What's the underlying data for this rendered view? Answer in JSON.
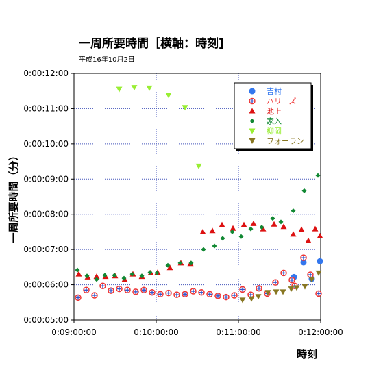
{
  "chart_data": {
    "type": "scatter",
    "title": "一周所要時間［横軸：時刻]",
    "subtitle": "平成16年10月2日",
    "xlabel": "時刻",
    "ylabel": "一周所要時間（分）",
    "xlim": [
      "0:09:00:00",
      "0:12:00:00"
    ],
    "ylim": [
      "0:00:05:00",
      "0:00:12:00"
    ],
    "x_ticks": [
      "0:09:00:00",
      "0:10:00:00",
      "0:11:00:00",
      "0:12:00:00"
    ],
    "y_ticks": [
      "0:00:05:00",
      "0:00:06:00",
      "0:00:07:00",
      "0:00:08:00",
      "0:00:09:00",
      "0:00:10:00",
      "0:00:11:00",
      "0:00:12:00"
    ],
    "grid": true,
    "legend_position": "top-right",
    "series": [
      {
        "name": "吉村",
        "marker": "circle",
        "color": "#3377ee",
        "points": [
          [
            "0:11:40:30",
            "0:00:06:13"
          ],
          [
            "0:11:47:30",
            "0:00:06:38"
          ],
          [
            "0:11:53:30",
            "0:00:06:10"
          ],
          [
            "0:11:59:30",
            "0:00:06:40"
          ]
        ]
      },
      {
        "name": "ハリーズ",
        "marker": "cross-circle",
        "color": "#ee3333",
        "points": [
          [
            "0:09:03:00",
            "0:00:05:38"
          ],
          [
            "0:09:09:00",
            "0:00:05:51"
          ],
          [
            "0:09:15:00",
            "0:00:05:42"
          ],
          [
            "0:09:21:00",
            "0:00:05:58"
          ],
          [
            "0:09:27:00",
            "0:00:05:50"
          ],
          [
            "0:09:33:00",
            "0:00:05:53"
          ],
          [
            "0:09:39:00",
            "0:00:05:51"
          ],
          [
            "0:09:45:00",
            "0:00:05:48"
          ],
          [
            "0:09:51:00",
            "0:00:05:51"
          ],
          [
            "0:09:57:00",
            "0:00:05:47"
          ],
          [
            "0:10:03:00",
            "0:00:05:44"
          ],
          [
            "0:10:09:00",
            "0:00:05:46"
          ],
          [
            "0:10:15:00",
            "0:00:05:43"
          ],
          [
            "0:10:21:00",
            "0:00:05:44"
          ],
          [
            "0:10:27:00",
            "0:00:05:49"
          ],
          [
            "0:10:33:00",
            "0:00:05:47"
          ],
          [
            "0:10:39:00",
            "0:00:05:44"
          ],
          [
            "0:10:45:00",
            "0:00:05:41"
          ],
          [
            "0:10:51:00",
            "0:00:05:39"
          ],
          [
            "0:10:57:00",
            "0:00:05:42"
          ],
          [
            "0:11:03:00",
            "0:00:05:52"
          ],
          [
            "0:11:09:00",
            "0:00:05:43"
          ],
          [
            "0:11:15:00",
            "0:00:05:54"
          ],
          [
            "0:11:21:00",
            "0:00:05:45"
          ],
          [
            "0:11:27:00",
            "0:00:06:04"
          ],
          [
            "0:11:33:00",
            "0:00:06:20"
          ],
          [
            "0:11:39:00",
            "0:00:06:08"
          ],
          [
            "0:11:41:00",
            "0:00:05:58"
          ],
          [
            "0:11:47:30",
            "0:00:06:46"
          ],
          [
            "0:11:52:30",
            "0:00:06:17"
          ],
          [
            "0:11:58:30",
            "0:00:05:45"
          ]
        ]
      },
      {
        "name": "池上",
        "marker": "triangle-up",
        "color": "#dd1111",
        "points": [
          [
            "0:09:03:30",
            "0:00:06:18"
          ],
          [
            "0:09:10:00",
            "0:00:06:13"
          ],
          [
            "0:09:16:30",
            "0:00:06:14"
          ],
          [
            "0:09:23:00",
            "0:00:06:14"
          ],
          [
            "0:09:30:00",
            "0:00:06:15"
          ],
          [
            "0:09:37:00",
            "0:00:06:09"
          ],
          [
            "0:09:43:00",
            "0:00:06:18"
          ],
          [
            "0:09:49:30",
            "0:00:06:14"
          ],
          [
            "0:09:56:00",
            "0:00:06:20"
          ],
          [
            "0:10:01:00",
            "0:00:06:21"
          ],
          [
            "0:10:10:00",
            "0:00:06:29"
          ],
          [
            "0:10:18:00",
            "0:00:06:37"
          ],
          [
            "0:10:25:00",
            "0:00:06:36"
          ],
          [
            "0:10:34:00",
            "0:00:07:30"
          ],
          [
            "0:10:41:00",
            "0:00:07:32"
          ],
          [
            "0:10:48:00",
            "0:00:07:42"
          ],
          [
            "0:10:56:00",
            "0:00:07:36"
          ],
          [
            "0:11:04:00",
            "0:00:07:42"
          ],
          [
            "0:11:11:00",
            "0:00:07:44"
          ],
          [
            "0:11:18:00",
            "0:00:07:35"
          ],
          [
            "0:11:26:00",
            "0:00:07:43"
          ],
          [
            "0:11:33:00",
            "0:00:07:39"
          ],
          [
            "0:11:40:00",
            "0:00:07:26"
          ],
          [
            "0:11:46:00",
            "0:00:07:34"
          ],
          [
            "0:11:51:00",
            "0:00:07:15"
          ],
          [
            "0:11:56:00",
            "0:00:07:35"
          ],
          [
            "0:11:59:30",
            "0:00:07:23"
          ]
        ]
      },
      {
        "name": "家入",
        "marker": "diamond",
        "color": "#118833",
        "points": [
          [
            "0:09:02:30",
            "0:00:06:25"
          ],
          [
            "0:09:09:30",
            "0:00:06:15"
          ],
          [
            "0:09:16:30",
            "0:00:06:09"
          ],
          [
            "0:09:22:30",
            "0:00:06:16"
          ],
          [
            "0:09:29:30",
            "0:00:06:16"
          ],
          [
            "0:09:36:30",
            "0:00:06:11"
          ],
          [
            "0:09:42:30",
            "0:00:06:18"
          ],
          [
            "0:09:49:30",
            "0:00:06:15"
          ],
          [
            "0:09:55:30",
            "0:00:06:21"
          ],
          [
            "0:10:00:30",
            "0:00:06:20"
          ],
          [
            "0:10:08:30",
            "0:00:06:33"
          ],
          [
            "0:10:17:30",
            "0:00:06:37"
          ],
          [
            "0:10:25:30",
            "0:00:06:37"
          ],
          [
            "0:10:34:30",
            "0:00:07:00"
          ],
          [
            "0:10:42:30",
            "0:00:07:06"
          ],
          [
            "0:10:48:30",
            "0:00:07:19"
          ],
          [
            "0:10:55:30",
            "0:00:07:30"
          ],
          [
            "0:11:02:00",
            "0:00:07:22"
          ],
          [
            "0:11:09:00",
            "0:00:07:35"
          ],
          [
            "0:11:17:00",
            "0:00:07:38"
          ],
          [
            "0:11:25:00",
            "0:00:07:53"
          ],
          [
            "0:11:31:00",
            "0:00:07:47"
          ],
          [
            "0:11:40:00",
            "0:00:08:06"
          ],
          [
            "0:11:48:00",
            "0:00:08:40"
          ],
          [
            "0:11:58:00",
            "0:00:09:06"
          ]
        ]
      },
      {
        "name": "柳岡",
        "marker": "triangle-down",
        "color": "#99ee33",
        "points": [
          [
            "0:09:33:00",
            "0:00:11:33"
          ],
          [
            "0:09:44:00",
            "0:00:11:36"
          ],
          [
            "0:09:55:00",
            "0:00:11:35"
          ],
          [
            "0:10:09:00",
            "0:00:11:23"
          ],
          [
            "0:10:21:00",
            "0:00:11:02"
          ],
          [
            "0:10:31:00",
            "0:00:09:22"
          ]
        ]
      },
      {
        "name": "フォーラン",
        "marker": "triangle-down",
        "color": "#887722",
        "points": [
          [
            "0:11:03:00",
            "0:00:05:34"
          ],
          [
            "0:11:09:30",
            "0:00:05:36"
          ],
          [
            "0:11:14:30",
            "0:00:05:40"
          ],
          [
            "0:11:21:30",
            "0:00:05:47"
          ],
          [
            "0:11:27:30",
            "0:00:05:48"
          ],
          [
            "0:11:32:30",
            "0:00:05:48"
          ],
          [
            "0:11:38:30",
            "0:00:05:53"
          ],
          [
            "0:11:42:30",
            "0:00:05:55"
          ],
          [
            "0:11:48:30",
            "0:00:05:57"
          ],
          [
            "0:11:53:30",
            "0:00:06:09"
          ],
          [
            "0:11:58:30",
            "0:00:06:20"
          ]
        ]
      }
    ]
  }
}
